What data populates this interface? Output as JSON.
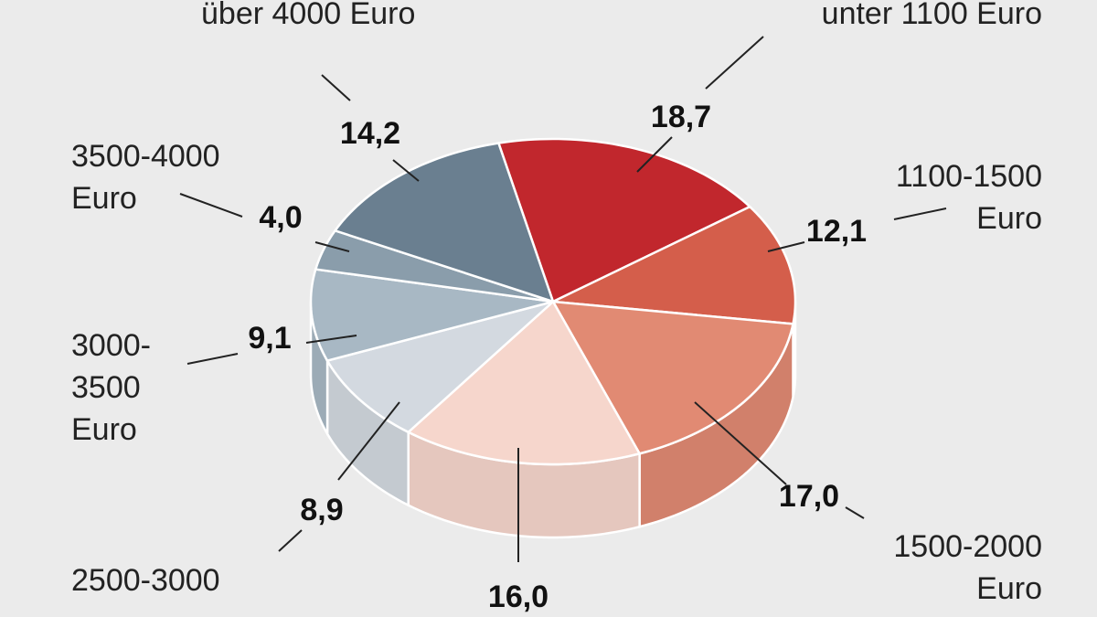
{
  "chart_data": {
    "type": "pie",
    "categories": [
      "unter 1100 Euro",
      "1100-1500 Euro",
      "1500-2000 Euro",
      null,
      "2500-3000",
      "3000-3500 Euro",
      "3500-4000 Euro",
      "über 4000 Euro"
    ],
    "values": [
      18.7,
      12.1,
      17.0,
      16.0,
      8.9,
      9.1,
      4.0,
      14.2
    ],
    "value_labels": [
      "18,7",
      "12,1",
      "17,0",
      "16,0",
      "8,9",
      "9,1",
      "4,0",
      "14,2"
    ],
    "colors": [
      "#c1272d",
      "#d45e4b",
      "#e18a73",
      "#f6d6cc",
      "#d3d9e0",
      "#a8b8c4",
      "#8a9dab",
      "#6a7f90"
    ]
  }
}
